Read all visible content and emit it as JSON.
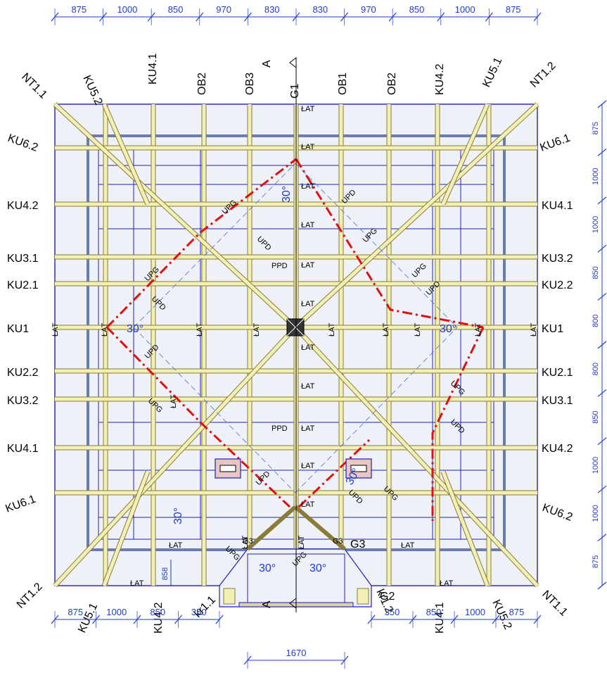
{
  "dims": {
    "top": [
      "875",
      "1000",
      "850",
      "970",
      "830",
      "830",
      "970",
      "850",
      "1000",
      "875"
    ],
    "bottom_left": [
      "875",
      "1000",
      "850",
      "350"
    ],
    "bottom_right": [
      "350",
      "850",
      "1000",
      "875"
    ],
    "bottom_center": "1670",
    "right": [
      "875",
      "1000",
      "1000",
      "850",
      "800",
      "800",
      "850",
      "1000",
      "1000",
      "875"
    ],
    "small_858": "858"
  },
  "top_labels": [
    "NT1.1",
    "KU5.2",
    "KU4.1",
    "OB2",
    "OB3",
    "G1",
    "OB1",
    "OB2",
    "KU4.2",
    "KU5.1",
    "NT1.2"
  ],
  "bottom_labels": [
    "NT1.2",
    "KU5.1",
    "KU4.2",
    "kr1.1",
    "kr1.2",
    "G2",
    "KU4.1",
    "KU5.2",
    "NT1.1"
  ],
  "left_labels": [
    "KU6.2",
    "KU4.2",
    "KU3.1",
    "KU2.1",
    "KU1",
    "KU2.2",
    "KU3.2",
    "KU4.1",
    "KU6.1"
  ],
  "right_labels": [
    "KU6.1",
    "KU4.1",
    "KU3.2",
    "KU2.2",
    "KU1",
    "KU2.1",
    "KU3.1",
    "KU4.2",
    "KU6.2"
  ],
  "section_mark": "A",
  "member_labels": {
    "lat": "ŁAT",
    "upg": "UPG",
    "upd": "UPD",
    "ppd": "PPD",
    "g3": "G3"
  },
  "slopes": [
    "30°",
    "30°",
    "30°",
    "30°",
    "30°",
    "30°",
    "30°"
  ],
  "colors": {
    "ink": "#000000",
    "dim": "#1f3bd6",
    "rafter": "#f2f0b4",
    "rafter_edge": "#8a7b38",
    "purlin": "#1f1fb8",
    "ridge": "#e01010",
    "glass": "#e9eef7",
    "window": "#e8c6c6"
  }
}
